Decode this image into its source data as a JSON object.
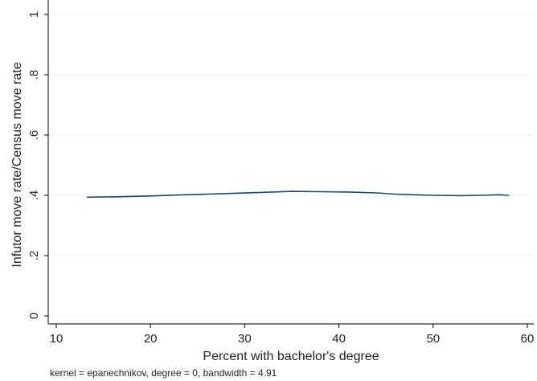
{
  "chart_data": {
    "type": "line",
    "xlabel": "Percent with bachelor's degree",
    "ylabel": "Infutor move rate/Census move rate",
    "note": "kernel = epanechnikov, degree = 0, bandwidth = 4.91",
    "xlim": [
      10,
      60
    ],
    "ylim": [
      0,
      1
    ],
    "x_ticks": [
      10,
      20,
      30,
      40,
      50,
      60
    ],
    "x_tick_labels": [
      "10",
      "20",
      "30",
      "40",
      "50",
      "60"
    ],
    "y_ticks": [
      0,
      0.2,
      0.4,
      0.6,
      0.8,
      1
    ],
    "y_tick_labels": [
      "0",
      ".2",
      ".4",
      ".6",
      ".8",
      "1"
    ],
    "grid": "horizontal",
    "colors": {
      "line": "#1a476f",
      "grid": "#eaf2f3",
      "axis": "#000000"
    },
    "series": [
      {
        "x": [
          13.3,
          16,
          20,
          23,
          26,
          29,
          32,
          35,
          38,
          41,
          44,
          46,
          48,
          50,
          53,
          55,
          57,
          58
        ],
        "y": [
          0.394,
          0.395,
          0.398,
          0.401,
          0.404,
          0.407,
          0.41,
          0.413,
          0.412,
          0.411,
          0.408,
          0.404,
          0.402,
          0.4,
          0.399,
          0.4,
          0.402,
          0.4
        ]
      }
    ]
  }
}
